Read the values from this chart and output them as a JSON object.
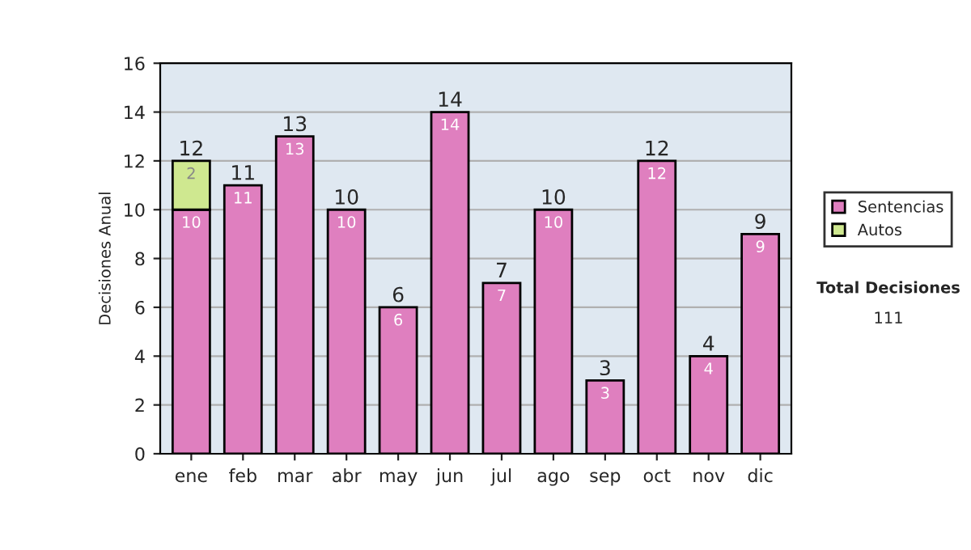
{
  "chart_data": {
    "type": "bar",
    "stacked": true,
    "ylabel": "Decisiones Anual",
    "categories": [
      "ene",
      "feb",
      "mar",
      "abr",
      "may",
      "jun",
      "jul",
      "ago",
      "sep",
      "oct",
      "nov",
      "dic"
    ],
    "series": [
      {
        "name": "Sentencias",
        "color": "#df7fbf",
        "values": [
          10,
          11,
          13,
          10,
          6,
          14,
          7,
          10,
          3,
          12,
          4,
          9
        ],
        "value_labels": [
          "10",
          "11",
          "13",
          "10",
          "6",
          "14",
          "7",
          "10",
          "3",
          "12",
          "4",
          "9"
        ]
      },
      {
        "name": "Autos",
        "color": "#cfe890",
        "values": [
          2,
          null,
          null,
          null,
          null,
          null,
          null,
          null,
          null,
          null,
          null,
          null
        ],
        "value_labels": [
          "2",
          null,
          null,
          null,
          null,
          null,
          null,
          null,
          null,
          null,
          null,
          null
        ]
      }
    ],
    "totals": [
      "12",
      "11",
      "13",
      "10",
      "6",
      "14",
      "7",
      "10",
      "3",
      "12",
      "4",
      "9"
    ],
    "ylim": [
      0,
      16
    ],
    "yticks": [
      0,
      2,
      4,
      6,
      8,
      10,
      12,
      14,
      16
    ],
    "grid": "y",
    "legend": "right",
    "annotations": [
      "Total Decisiones",
      "111"
    ]
  }
}
